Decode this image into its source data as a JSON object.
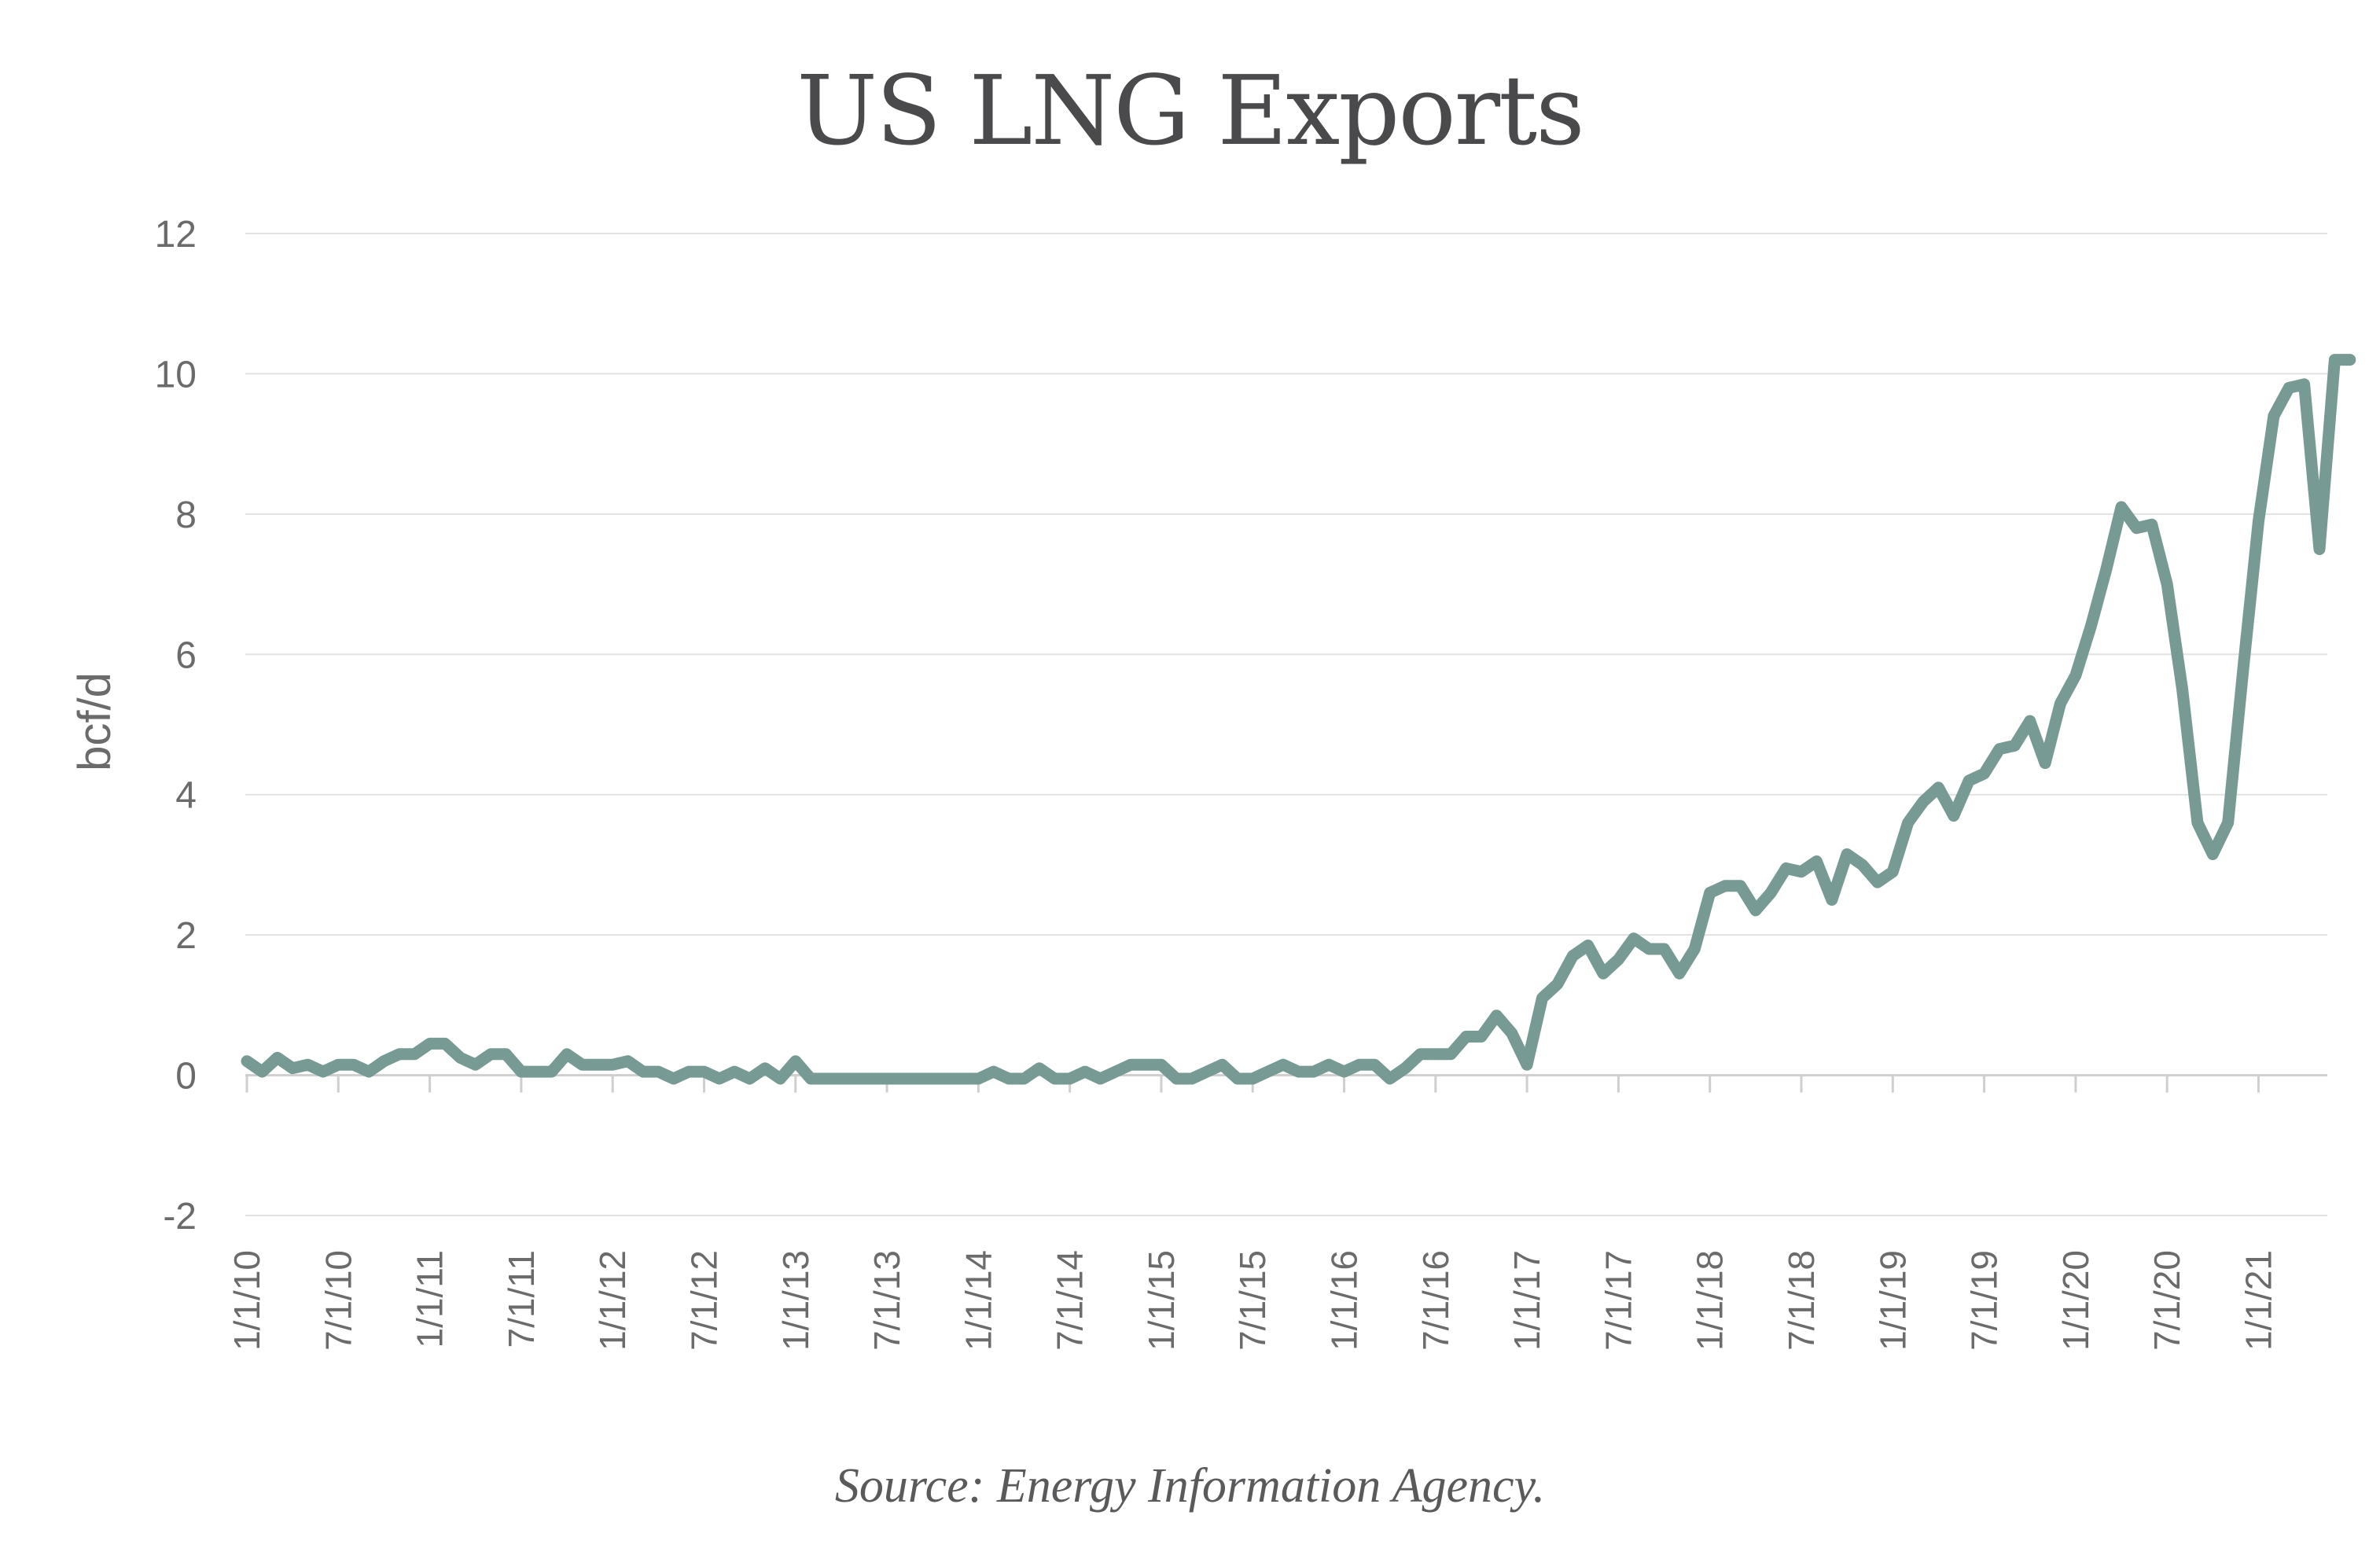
{
  "chart_data": {
    "type": "line",
    "title": "US LNG Exports",
    "xlabel": "",
    "ylabel": "bcf/d",
    "source": "Source: Energy Information Agency.",
    "ylim": [
      -2,
      12
    ],
    "yticks": [
      -2,
      0,
      2,
      4,
      6,
      8,
      10,
      12
    ],
    "x_tick_labels": [
      "1/1/10",
      "7/1/10",
      "1/1/11",
      "7/1/11",
      "1/1/12",
      "7/1/12",
      "1/1/13",
      "7/1/13",
      "1/1/14",
      "7/1/14",
      "1/1/15",
      "7/1/15",
      "1/1/16",
      "7/1/16",
      "1/1/17",
      "7/1/17",
      "1/1/18",
      "7/1/18",
      "1/1/19",
      "7/1/19",
      "1/1/20",
      "7/1/20",
      "1/1/21"
    ],
    "grid": true,
    "line_color": "#789a94",
    "series": [
      {
        "name": "",
        "start": "2010-01",
        "frequency": "monthly",
        "values": [
          0.2,
          0.05,
          0.25,
          0.1,
          0.15,
          0.05,
          0.15,
          0.15,
          0.05,
          0.2,
          0.3,
          0.3,
          0.45,
          0.45,
          0.25,
          0.15,
          0.3,
          0.3,
          0.05,
          0.05,
          0.05,
          0.3,
          0.15,
          0.15,
          0.15,
          0.2,
          0.05,
          0.05,
          -0.05,
          0.05,
          0.05,
          -0.05,
          0.05,
          -0.05,
          0.1,
          -0.05,
          0.2,
          -0.05,
          -0.05,
          -0.05,
          -0.05,
          -0.05,
          -0.05,
          -0.05,
          -0.05,
          -0.05,
          -0.05,
          -0.05,
          -0.05,
          0.05,
          -0.05,
          -0.05,
          0.1,
          -0.05,
          -0.05,
          0.05,
          -0.05,
          0.05,
          0.15,
          0.15,
          0.15,
          -0.05,
          -0.05,
          0.05,
          0.15,
          -0.05,
          -0.05,
          0.05,
          0.15,
          0.05,
          0.05,
          0.15,
          0.05,
          0.15,
          0.15,
          -0.05,
          0.1,
          0.3,
          0.3,
          0.3,
          0.55,
          0.55,
          0.85,
          0.6,
          0.15,
          1.1,
          1.3,
          1.7,
          1.85,
          1.45,
          1.65,
          1.95,
          1.8,
          1.8,
          1.45,
          1.8,
          2.6,
          2.7,
          2.7,
          2.35,
          2.6,
          2.95,
          2.9,
          3.05,
          2.5,
          3.15,
          3.0,
          2.75,
          2.9,
          3.6,
          3.9,
          4.1,
          3.7,
          4.2,
          4.3,
          4.65,
          4.7,
          5.05,
          4.45,
          5.3,
          5.7,
          6.4,
          7.2,
          8.1,
          7.8,
          7.85,
          7.0,
          5.5,
          3.6,
          3.15,
          3.6,
          5.8,
          7.9,
          9.4,
          9.8,
          9.85,
          7.5,
          10.2,
          10.2
        ]
      }
    ]
  }
}
